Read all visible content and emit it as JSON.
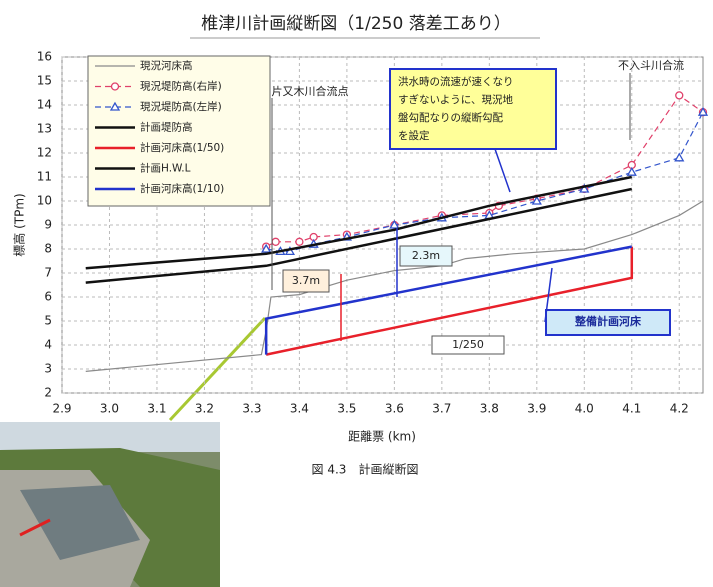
{
  "chart_data": {
    "type": "line",
    "title": "椎津川計画縦断図（1/250 落差工あり）",
    "x_label": "距離票 (km)",
    "y_label": "標高 (TPm)",
    "xlim": [
      2.9,
      4.25
    ],
    "ylim": [
      2,
      16
    ],
    "xticks": [
      2.9,
      {
        "value": 3,
        "label": "3.0"
      },
      3.1,
      3.2,
      3.3,
      3.4,
      3.5,
      3.6,
      3.7,
      3.8,
      3.9,
      {
        "value": 4,
        "label": "4.0"
      },
      4.1,
      4.2
    ],
    "yticks": [
      2,
      3,
      4,
      5,
      6,
      7,
      8,
      9,
      10,
      11,
      12,
      13,
      14,
      15,
      16
    ],
    "grid": true,
    "legend": "top-left",
    "series": [
      {
        "name": "現況河床高",
        "color": "#8a8a8a",
        "width": 1.2,
        "dash": false,
        "marker": null,
        "x": [
          2.95,
          3.32,
          3.33,
          3.34,
          3.4,
          3.5,
          3.6,
          3.7,
          3.75,
          3.85,
          4.0,
          4.1,
          4.2,
          4.25
        ],
        "values": [
          2.9,
          3.6,
          4.6,
          6.0,
          6.1,
          6.7,
          7.1,
          7.3,
          7.6,
          7.8,
          8.0,
          8.6,
          9.4,
          10.0
        ]
      },
      {
        "name": "現況堤防高(右岸)",
        "color": "#e0406a",
        "width": 1.2,
        "dash": true,
        "marker": "circle",
        "x": [
          3.33,
          3.35,
          3.4,
          3.43,
          3.5,
          3.6,
          3.7,
          3.8,
          3.82,
          3.9,
          4.0,
          4.1,
          4.2,
          4.25
        ],
        "values": [
          8.1,
          8.3,
          8.3,
          8.5,
          8.6,
          9.0,
          9.4,
          9.5,
          9.8,
          10.1,
          10.5,
          11.5,
          14.4,
          13.7
        ]
      },
      {
        "name": "現況堤防高(左岸)",
        "color": "#3355cc",
        "width": 1.2,
        "dash": true,
        "marker": "triangle",
        "x": [
          3.33,
          3.36,
          3.38,
          3.43,
          3.5,
          3.6,
          3.7,
          3.8,
          3.9,
          4.0,
          4.1,
          4.2,
          4.25
        ],
        "values": [
          8.0,
          7.9,
          7.9,
          8.2,
          8.5,
          9.0,
          9.3,
          9.4,
          10.0,
          10.5,
          11.2,
          11.8,
          13.7
        ]
      },
      {
        "name": "計画堤防高",
        "color": "#111111",
        "width": 2.5,
        "dash": false,
        "marker": null,
        "x": [
          2.95,
          3.33,
          3.6,
          3.8,
          4.1
        ],
        "values": [
          7.2,
          7.8,
          8.8,
          9.8,
          11.0
        ]
      },
      {
        "name": "計画河床高(1/50)",
        "color": "#e8202a",
        "width": 2.5,
        "dash": false,
        "marker": null,
        "x": [
          3.33,
          4.1,
          4.1
        ],
        "values": [
          3.6,
          6.8,
          8.1
        ]
      },
      {
        "name": "計画H.W.L",
        "color": "#111111",
        "width": 2.5,
        "dash": false,
        "marker": null,
        "x": [
          2.95,
          3.33,
          4.1
        ],
        "values": [
          6.6,
          7.3,
          10.5
        ]
      },
      {
        "name": "計画河床高(1/10)",
        "color": "#2233cc",
        "width": 2.5,
        "dash": false,
        "marker": null,
        "x": [
          3.33,
          3.33,
          4.1
        ],
        "values": [
          3.6,
          5.1,
          8.1
        ]
      }
    ],
    "annotations": [
      "片又木川合流点",
      "不入斗川合流",
      "2.3m",
      "3.7m",
      "整備計画河床",
      "1/250"
    ],
    "callout": [
      "洪水時の流速が速くなり",
      "すぎないように、現況地",
      "盤勾配なりの縦断勾配",
      "を設定"
    ],
    "caption": "図 4.3　計画縦断図"
  }
}
